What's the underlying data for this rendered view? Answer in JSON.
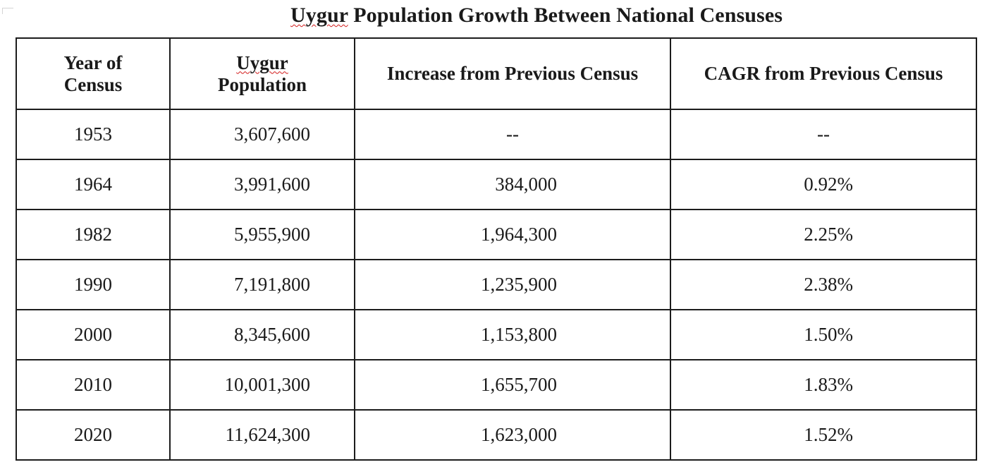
{
  "title": {
    "squiggled_word": "Uygur",
    "rest": " Population Growth Between National Censuses"
  },
  "table": {
    "headers": {
      "year": "Year of Census",
      "population_word": "Uygur",
      "population_rest": "Population",
      "increase": "Increase from Previous Census",
      "cagr": "CAGR from Previous Census"
    },
    "rows": [
      {
        "year": "1953",
        "population": "3,607,600",
        "increase": "--",
        "cagr": "--"
      },
      {
        "year": "1964",
        "population": "3,991,600",
        "increase": "384,000",
        "cagr": "0.92%"
      },
      {
        "year": "1982",
        "population": "5,955,900",
        "increase": "1,964,300",
        "cagr": "2.25%"
      },
      {
        "year": "1990",
        "population": "7,191,800",
        "increase": "1,235,900",
        "cagr": "2.38%"
      },
      {
        "year": "2000",
        "population": "8,345,600",
        "increase": "1,153,800",
        "cagr": "1.50%"
      },
      {
        "year": "2010",
        "population": "10,001,300",
        "increase": "1,655,700",
        "cagr": "1.83%"
      },
      {
        "year": "2020",
        "population": "11,624,300",
        "increase": "1,623,000",
        "cagr": "1.52%"
      }
    ]
  }
}
